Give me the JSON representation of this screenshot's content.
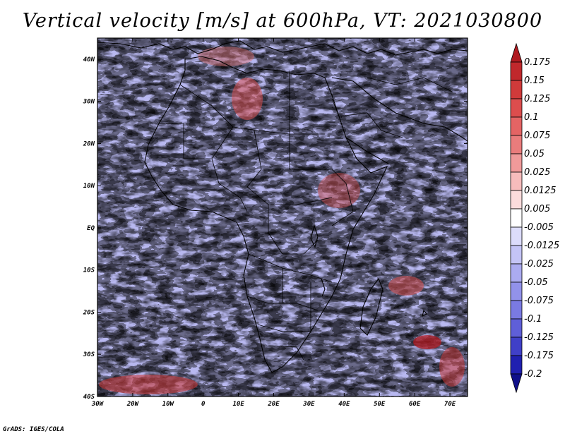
{
  "title": "Vertical velocity [m/s] at 600hPa, VT: 2021030800",
  "credit": "GrADS: IGES/COLA",
  "map": {
    "lat_labels": [
      "40N",
      "30N",
      "20N",
      "10N",
      "EQ",
      "10S",
      "20S",
      "30S",
      "40S"
    ],
    "lon_labels": [
      "30W",
      "20W",
      "10W",
      "0",
      "10E",
      "20E",
      "30E",
      "40E",
      "50E",
      "60E",
      "70E"
    ],
    "lat_range": [
      -40,
      45
    ],
    "lon_range": [
      -30,
      75
    ]
  },
  "colorbar": {
    "labels": [
      "0.175",
      "0.15",
      "0.125",
      "0.1",
      "0.075",
      "0.05",
      "0.025",
      "0.0125",
      "0.005",
      "-0.005",
      "-0.0125",
      "-0.025",
      "-0.05",
      "-0.075",
      "-0.1",
      "-0.125",
      "-0.175",
      "-0.2"
    ],
    "colors": [
      "#b01a20",
      "#c0282c",
      "#d03a3a",
      "#dc4d4d",
      "#e46464",
      "#ea7c7c",
      "#f09a9a",
      "#f6bcbc",
      "#fbdcdc",
      "#ffffff",
      "#dcdcfb",
      "#c4c4f6",
      "#ababf0",
      "#9292ea",
      "#7a7ae2",
      "#5f5fd8",
      "#4040c8",
      "#2020b0",
      "#10108a"
    ]
  }
}
